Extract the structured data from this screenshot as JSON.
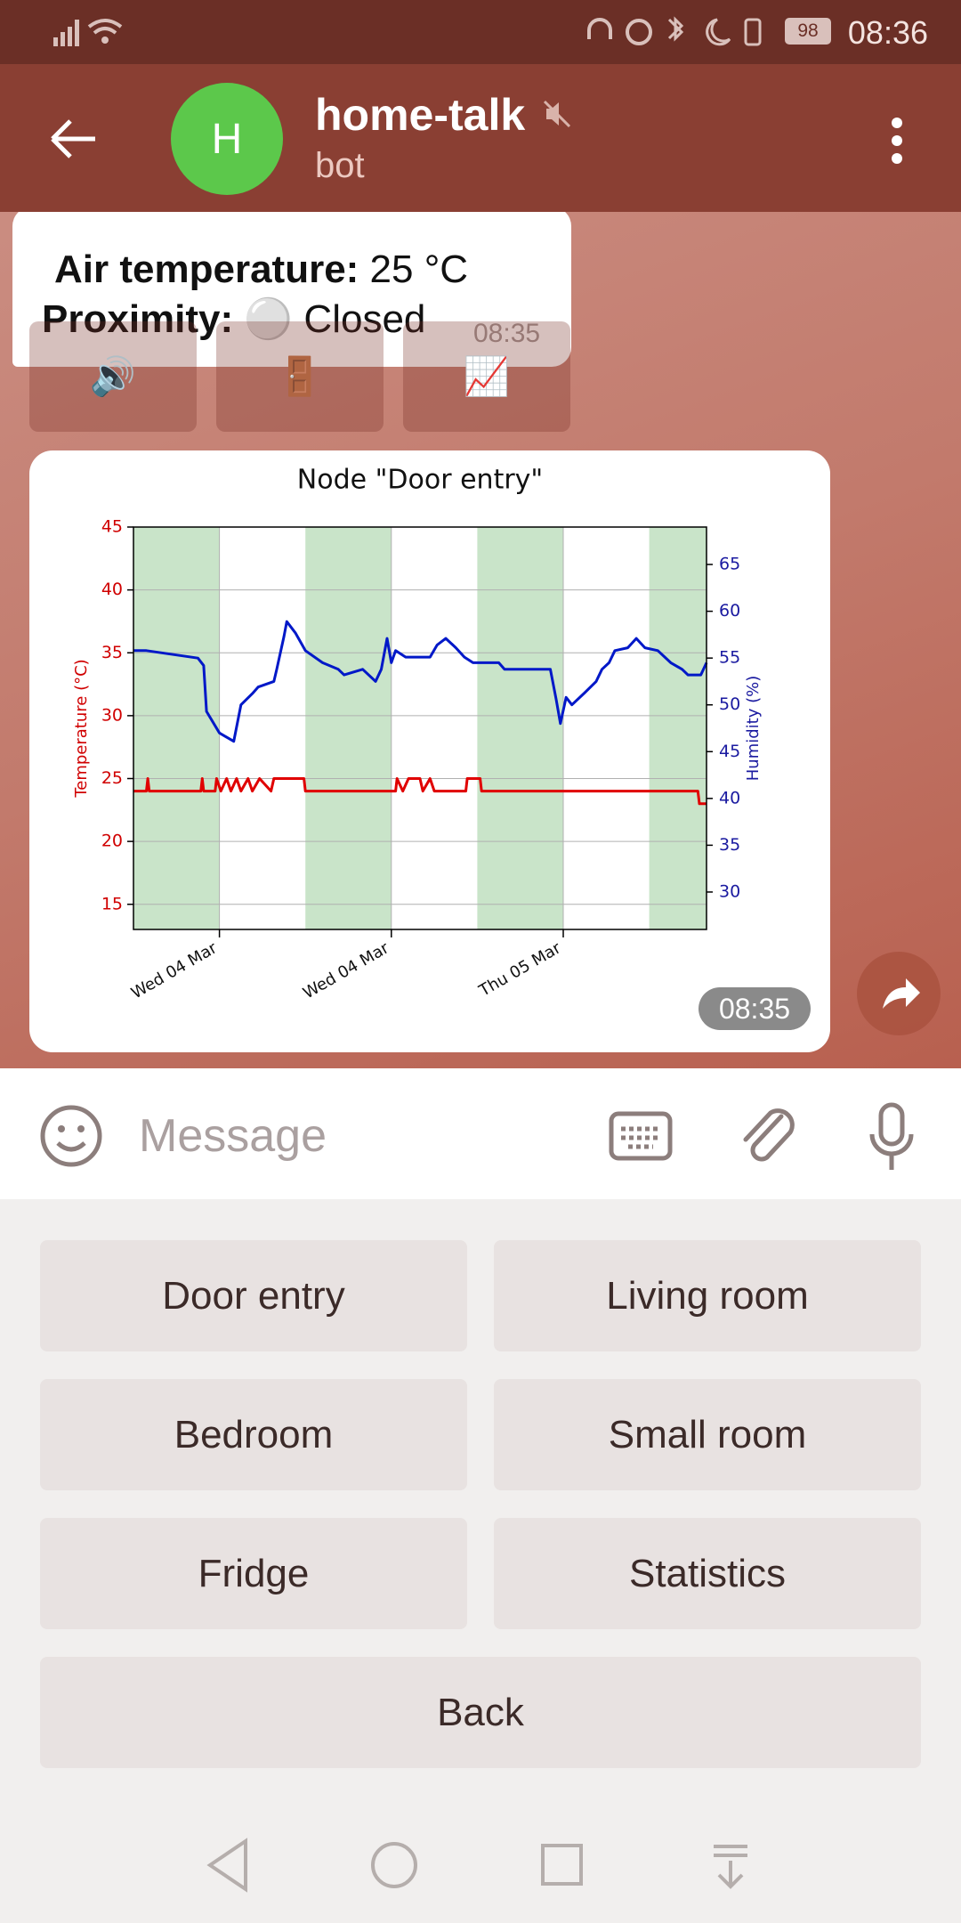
{
  "status_bar": {
    "time": "08:36",
    "battery": "98"
  },
  "header": {
    "avatar": "H",
    "title": "home-talk",
    "subtitle": "bot"
  },
  "message": {
    "line1_label": "Air temperature:",
    "line1_value": "25 °C",
    "line2_label": "Proximity:",
    "line2_value": "⚪ Closed",
    "time": "08:35"
  },
  "inline_buttons": [
    "🔊",
    "🚪",
    "📈"
  ],
  "photo": {
    "time": "08:35"
  },
  "chart_data": {
    "type": "line",
    "title": "Node \"Door entry\"",
    "ylabel": "Temperature (°C)",
    "y2label": "Humidity (%)",
    "xlim": [
      -6,
      34
    ],
    "xticks": [
      {
        "value": 0,
        "label": "Wed 04 Mar"
      },
      {
        "value": 12,
        "label": "Wed 04 Mar"
      },
      {
        "value": 24,
        "label": "Thu 05 Mar"
      }
    ],
    "ylim": [
      13,
      45
    ],
    "yticks": [
      15,
      20,
      25,
      30,
      35,
      40,
      45
    ],
    "ycolor": "#d00000",
    "y2lim": [
      26,
      69
    ],
    "y2ticks": [
      30,
      35,
      40,
      45,
      50,
      55,
      60,
      65
    ],
    "y2color": "#1a1aa0",
    "grid": true,
    "shaded_spans": [
      [
        -6,
        0
      ],
      [
        6,
        12
      ],
      [
        18,
        24
      ],
      [
        30,
        34
      ]
    ],
    "shade_color": "#c9e4c9",
    "series": [
      {
        "color": "#e00000",
        "x": [
          -6,
          -5.1,
          -5.0,
          -4.9,
          -1.3,
          -1.2,
          -1.1,
          -0.3,
          -0.2,
          0.1,
          0.5,
          0.8,
          1.2,
          1.5,
          2.0,
          2.3,
          2.8,
          3.6,
          3.8,
          5.9,
          6.0,
          12.3,
          12.4,
          12.8,
          13.2,
          14.0,
          14.2,
          14.7,
          15.0,
          17.2,
          17.3,
          18.2,
          18.3,
          33.4,
          33.5,
          34
        ],
        "values": [
          24,
          24,
          25,
          24,
          24,
          25,
          24,
          24,
          25,
          24,
          25,
          24,
          25,
          24,
          25,
          24,
          25,
          24,
          25,
          25,
          24,
          24,
          25,
          24,
          25,
          25,
          24,
          25,
          24,
          24,
          25,
          25,
          24,
          24,
          23,
          23
        ]
      },
      {
        "color": "#0018c8",
        "axis": "y2",
        "x": [
          -6,
          -5.1,
          -1.5,
          -1.1,
          -0.9,
          0,
          1.0,
          1.5,
          2.3,
          2.7,
          3.8,
          4.0,
          4.5,
          4.7,
          5.3,
          6.0,
          7.2,
          8.3,
          8.7,
          10.0,
          10.9,
          11.3,
          11.7,
          12.0,
          12.3,
          13.0,
          14.7,
          15.2,
          15.8,
          16.5,
          17.1,
          17.7,
          19.5,
          19.9,
          23.1,
          23.5,
          23.8,
          24.2,
          24.6,
          25.5,
          26.3,
          26.7,
          27.2,
          27.6,
          28.5,
          29.1,
          29.7,
          30.6,
          31.5,
          32.3,
          32.7,
          33.6,
          34
        ],
        "values": [
          55.8,
          55.8,
          55.0,
          54.2,
          49.3,
          47.0,
          46.1,
          50.0,
          51.2,
          51.9,
          52.5,
          53.8,
          57.3,
          58.9,
          57.7,
          55.8,
          54.5,
          53.8,
          53.2,
          53.8,
          52.5,
          53.8,
          57.1,
          54.5,
          55.8,
          55.1,
          55.1,
          56.4,
          57.1,
          56.1,
          55.1,
          54.5,
          54.5,
          53.8,
          53.8,
          50.6,
          48.0,
          50.8,
          50.0,
          51.3,
          52.5,
          53.8,
          54.5,
          55.8,
          56.1,
          57.1,
          56.1,
          55.8,
          54.5,
          53.8,
          53.2,
          53.2,
          54.5
        ]
      }
    ]
  },
  "input": {
    "placeholder": "Message"
  },
  "keyboard": [
    "Door entry",
    "Living room",
    "Bedroom",
    "Small room",
    "Fridge",
    "Statistics",
    "Back"
  ]
}
